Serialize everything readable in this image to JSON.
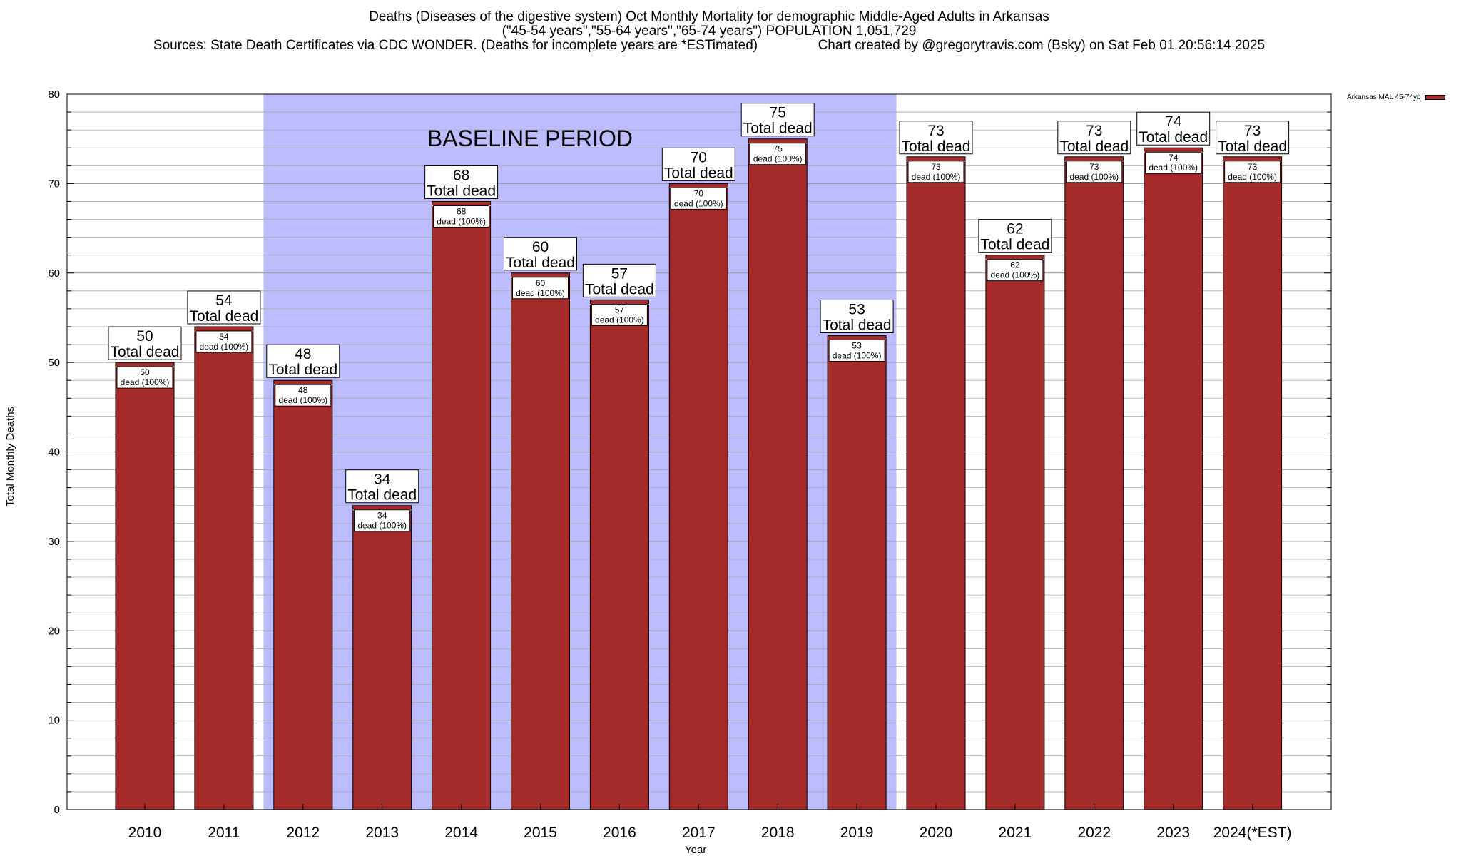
{
  "chart_data": {
    "type": "bar",
    "title": "Deaths (Diseases of the digestive system) Oct Monthly Mortality for demographic Middle-Aged Adults in Arkansas",
    "subtitle": "(\"45-54 years\",\"55-64 years\",\"65-74 years\") POPULATION 1,051,729",
    "source_line": "Sources: State Death Certificates via CDC WONDER. (Deaths for incomplete years are *ESTimated)",
    "credit_line": "Chart created by @gregorytravis.com (Bsky) on Sat Feb 01 20:56:14 2025",
    "xlabel": "Year",
    "ylabel": "Total Monthly Deaths",
    "ylim": [
      0,
      80
    ],
    "yticks": [
      0,
      10,
      20,
      30,
      40,
      50,
      60,
      70,
      80
    ],
    "grid": true,
    "categories": [
      "2010",
      "2011",
      "2012",
      "2013",
      "2014",
      "2015",
      "2016",
      "2017",
      "2018",
      "2019",
      "2020",
      "2021",
      "2022",
      "2023",
      "2024(*EST)"
    ],
    "series": [
      {
        "name": "Arkansas MAL 45-74yo",
        "color": "#a52a2a",
        "values": [
          50,
          54,
          48,
          34,
          68,
          60,
          57,
          70,
          75,
          53,
          73,
          62,
          73,
          74,
          73
        ]
      }
    ],
    "top_label_suffix": "Total dead",
    "inner_label_suffix": "dead (100%)",
    "baseline_band": {
      "label": "BASELINE PERIOD",
      "from": "2012",
      "to": "2019",
      "color": "#bcbcff"
    },
    "legend_position": "top-right"
  }
}
